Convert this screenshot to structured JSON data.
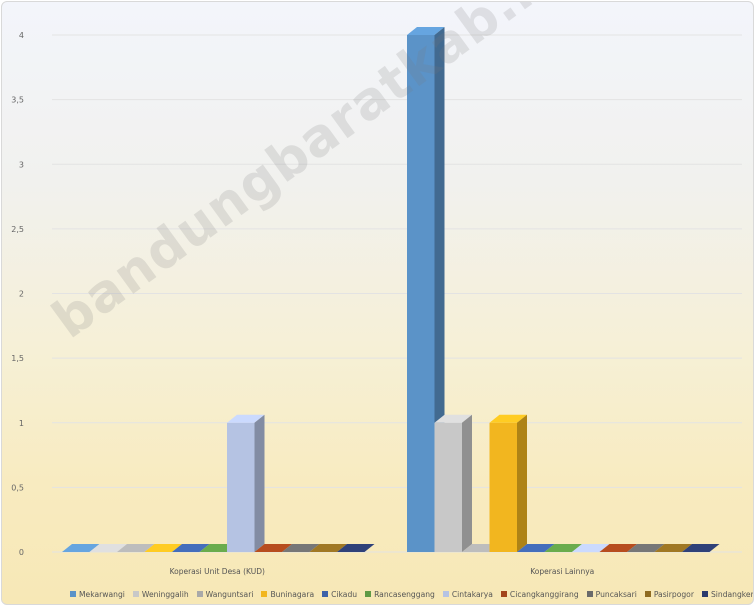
{
  "watermark": "bandungbaratkab.bps.go.id",
  "chart_data": {
    "type": "bar",
    "title": "",
    "xlabel": "",
    "ylabel": "",
    "ylim": [
      0,
      4
    ],
    "yticks": [
      "0",
      "0,5",
      "1",
      "1,5",
      "2",
      "2,5",
      "3",
      "3,5",
      "4"
    ],
    "ytick_values": [
      0,
      0.5,
      1,
      1.5,
      2,
      2.5,
      3,
      3.5,
      4
    ],
    "categories": [
      "Koperasi Unit Desa (KUD)",
      "Koperasi Lainnya"
    ],
    "series": [
      {
        "name": "Mekarwangi",
        "color": "#5b93c8",
        "values": [
          0,
          4
        ]
      },
      {
        "name": "Weninggalih",
        "color": "#c8c8c8",
        "values": [
          0,
          1
        ]
      },
      {
        "name": "Wanguntsari",
        "color": "#a9a9a9",
        "values": [
          0,
          0
        ]
      },
      {
        "name": "Buninagara",
        "color": "#f2b61f",
        "values": [
          0,
          1
        ]
      },
      {
        "name": "Cikadu",
        "color": "#3d62a8",
        "values": [
          0,
          0
        ]
      },
      {
        "name": "Rancasenggang",
        "color": "#5f9a45",
        "values": [
          0,
          0
        ]
      },
      {
        "name": "Cintakarya",
        "color": "#b5c3e3",
        "values": [
          1,
          0
        ]
      },
      {
        "name": "Cicangkanggirang",
        "color": "#a3451b",
        "values": [
          0,
          0
        ]
      },
      {
        "name": "Puncaksari",
        "color": "#6a6a6a",
        "values": [
          0,
          0
        ]
      },
      {
        "name": "Pasirpogor",
        "color": "#8f6b20",
        "values": [
          0,
          0
        ]
      },
      {
        "name": "Sindangkerta",
        "color": "#2a3a6c",
        "values": [
          0,
          0
        ]
      }
    ],
    "grid": true,
    "legend_position": "bottom",
    "style": "3d-columns"
  }
}
